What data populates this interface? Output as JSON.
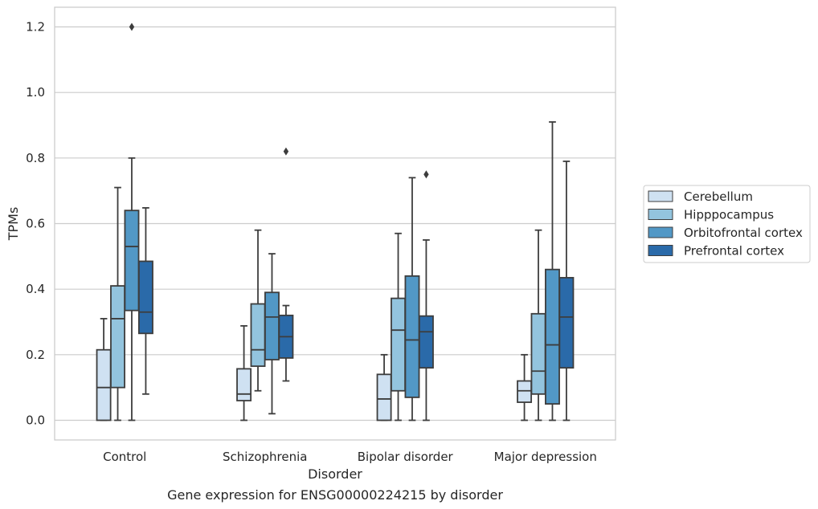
{
  "chart_data": {
    "type": "boxplot",
    "title": "Gene expression for ENSG00000224215 by disorder",
    "xlabel": "Disorder",
    "ylabel": "TPMs",
    "ylim": [
      -0.06,
      1.26
    ],
    "yticks": [
      "0.0",
      "0.2",
      "0.4",
      "0.6",
      "0.8",
      "1.0",
      "1.2"
    ],
    "grid": "horizontal",
    "legend_position": "right",
    "categories": [
      "Control",
      "Schizophrenia",
      "Bipolar disorder",
      "Major depression"
    ],
    "series": [
      {
        "name": "Cerebellum",
        "color": "#cfe1f2",
        "boxes": [
          {
            "min": 0.0,
            "q1": 0.0,
            "median": 0.1,
            "q3": 0.215,
            "max": 0.31,
            "outliers": []
          },
          {
            "min": 0.0,
            "q1": 0.06,
            "median": 0.08,
            "q3": 0.157,
            "max": 0.288,
            "outliers": []
          },
          {
            "min": 0.0,
            "q1": 0.0,
            "median": 0.065,
            "q3": 0.14,
            "max": 0.2,
            "outliers": []
          },
          {
            "min": 0.0,
            "q1": 0.055,
            "median": 0.09,
            "q3": 0.12,
            "max": 0.2,
            "outliers": []
          }
        ]
      },
      {
        "name": "Hipppocampus",
        "color": "#93c4de",
        "boxes": [
          {
            "min": 0.0,
            "q1": 0.1,
            "median": 0.31,
            "q3": 0.41,
            "max": 0.71,
            "outliers": []
          },
          {
            "min": 0.09,
            "q1": 0.165,
            "median": 0.215,
            "q3": 0.355,
            "max": 0.58,
            "outliers": []
          },
          {
            "min": 0.0,
            "q1": 0.09,
            "median": 0.275,
            "q3": 0.372,
            "max": 0.57,
            "outliers": []
          },
          {
            "min": 0.0,
            "q1": 0.08,
            "median": 0.15,
            "q3": 0.325,
            "max": 0.58,
            "outliers": []
          }
        ]
      },
      {
        "name": "Orbitofrontal cortex",
        "color": "#5298c6",
        "boxes": [
          {
            "min": 0.0,
            "q1": 0.335,
            "median": 0.53,
            "q3": 0.64,
            "max": 0.8,
            "outliers": [
              1.2
            ]
          },
          {
            "min": 0.02,
            "q1": 0.185,
            "median": 0.315,
            "q3": 0.39,
            "max": 0.508,
            "outliers": []
          },
          {
            "min": 0.0,
            "q1": 0.07,
            "median": 0.245,
            "q3": 0.44,
            "max": 0.74,
            "outliers": []
          },
          {
            "min": 0.0,
            "q1": 0.05,
            "median": 0.23,
            "q3": 0.46,
            "max": 0.91,
            "outliers": []
          }
        ]
      },
      {
        "name": "Prefrontal cortex",
        "color": "#2a6aa9",
        "boxes": [
          {
            "min": 0.08,
            "q1": 0.265,
            "median": 0.33,
            "q3": 0.485,
            "max": 0.648,
            "outliers": []
          },
          {
            "min": 0.12,
            "q1": 0.19,
            "median": 0.255,
            "q3": 0.32,
            "max": 0.35,
            "outliers": [
              0.82
            ]
          },
          {
            "min": 0.0,
            "q1": 0.16,
            "median": 0.27,
            "q3": 0.318,
            "max": 0.55,
            "outliers": [
              0.75
            ]
          },
          {
            "min": 0.0,
            "q1": 0.16,
            "median": 0.315,
            "q3": 0.435,
            "max": 0.79,
            "outliers": []
          }
        ]
      }
    ]
  }
}
